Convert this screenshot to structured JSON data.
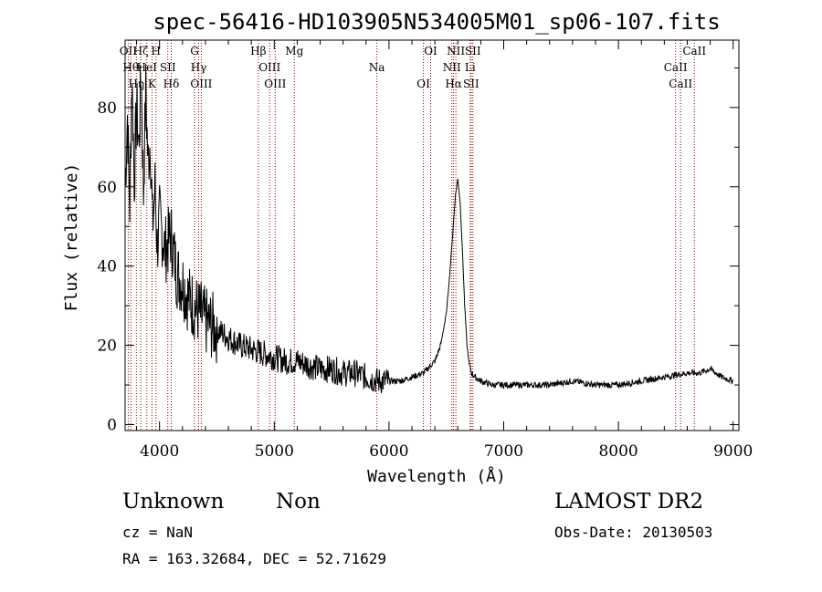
{
  "chart_data": {
    "type": "line",
    "title": "spec-56416-HD103905N534005M01_sp06-107.fits",
    "xlabel": "Wavelength (Å)",
    "ylabel": "Flux (relative)",
    "xlim": [
      3700,
      9050
    ],
    "ylim": [
      -1.5,
      97
    ],
    "x_ticks": [
      4000,
      5000,
      6000,
      7000,
      8000,
      9000
    ],
    "y_ticks": [
      0,
      20,
      40,
      60,
      80
    ],
    "grid": false,
    "legend": "none",
    "line_color": "#000000",
    "marker_color": "#8b0000",
    "series": [
      {
        "x": [
          3700,
          3720,
          3740,
          3760,
          3780,
          3800,
          3820,
          3840,
          3860,
          3880,
          3900,
          3920,
          3940,
          3960,
          3980,
          4000,
          4050,
          4100,
          4150,
          4200,
          4250,
          4300,
          4350,
          4400,
          4500,
          4600,
          4700,
          4800,
          4900,
          5000,
          5100,
          5200,
          5300,
          5400,
          5500,
          5600,
          5700,
          5800,
          5900,
          6000,
          6100,
          6200,
          6300,
          6400,
          6450,
          6500,
          6530,
          6560,
          6580,
          6600,
          6620,
          6640,
          6660,
          6680,
          6700,
          6720,
          6750,
          6800,
          6900,
          7000,
          7200,
          7400,
          7600,
          7800,
          8000,
          8200,
          8400,
          8600,
          8700,
          8800,
          8900,
          9000
        ],
        "y": [
          60,
          78,
          55,
          88,
          62,
          80,
          70,
          90,
          58,
          84,
          66,
          72,
          50,
          60,
          45,
          52,
          44,
          48,
          38,
          36,
          32,
          30,
          28,
          26,
          24,
          22,
          20,
          19,
          18,
          17,
          16,
          16,
          15,
          14,
          14,
          13,
          13,
          12,
          11,
          11,
          11,
          12,
          13,
          16,
          20,
          28,
          38,
          50,
          58,
          62,
          56,
          44,
          30,
          20,
          15,
          13,
          12,
          11,
          10,
          10,
          10,
          10,
          11,
          10,
          10,
          11,
          12,
          13,
          13,
          14,
          12,
          11
        ]
      }
    ],
    "line_markers": [
      {
        "x": 3727,
        "label": "OII"
      },
      {
        "x": 3750,
        "label": "Hθ"
      },
      {
        "x": 3798,
        "label": "Hη"
      },
      {
        "x": 3836,
        "label": "Hζ"
      },
      {
        "x": 3889,
        "label": "HeI"
      },
      {
        "x": 3934,
        "label": "K"
      },
      {
        "x": 3969,
        "label": "H"
      },
      {
        "x": 4072,
        "label": "SII"
      },
      {
        "x": 4102,
        "label": "Hδ"
      },
      {
        "x": 4305,
        "label": "G"
      },
      {
        "x": 4341,
        "label": "Hγ"
      },
      {
        "x": 4364,
        "label": "OIII"
      },
      {
        "x": 4861,
        "label": "Hβ"
      },
      {
        "x": 4960,
        "label": "OIII"
      },
      {
        "x": 5008,
        "label": "OIII"
      },
      {
        "x": 5175,
        "label": "Mg"
      },
      {
        "x": 5894,
        "label": "Na"
      },
      {
        "x": 6300,
        "label": "OI"
      },
      {
        "x": 6363,
        "label": "OI"
      },
      {
        "x": 6548,
        "label": "NII"
      },
      {
        "x": 6563,
        "label": "Hα"
      },
      {
        "x": 6583,
        "label": "NII"
      },
      {
        "x": 6708,
        "label": "Li"
      },
      {
        "x": 6716,
        "label": "SII"
      },
      {
        "x": 6731,
        "label": "SII"
      },
      {
        "x": 8498,
        "label": "CaII"
      },
      {
        "x": 8542,
        "label": "CaII"
      },
      {
        "x": 8662,
        "label": "CaII"
      }
    ]
  },
  "footer": {
    "object_class": "Unknown",
    "subclass": "Non",
    "survey": "LAMOST DR2",
    "redshift": "cz = NaN",
    "obs_date": "Obs-Date: 20130503",
    "coords": "RA = 163.32684, DEC =  52.71629"
  }
}
